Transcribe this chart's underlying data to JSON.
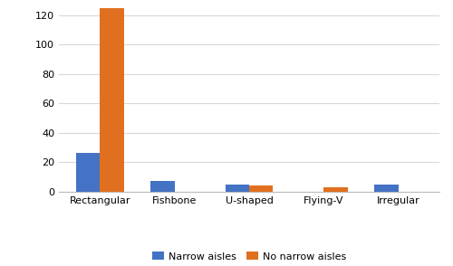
{
  "categories": [
    "Rectangular",
    "Fishbone",
    "U-shaped",
    "Flying-V",
    "Irregular"
  ],
  "narrow_aisles": [
    26,
    7,
    5,
    0,
    5
  ],
  "no_narrow_aisles": [
    130,
    0,
    4,
    3,
    0
  ],
  "narrow_color": "#4472c4",
  "no_narrow_color": "#e07020",
  "legend_labels": [
    "Narrow aisles",
    "No narrow aisles"
  ],
  "ylim": [
    0,
    125
  ],
  "yticks": [
    0,
    20,
    40,
    60,
    80,
    100,
    120
  ],
  "bar_width": 0.32,
  "grid_color": "#d8d8d8",
  "background_color": "#ffffff",
  "tick_fontsize": 8.0,
  "legend_fontsize": 8.0
}
